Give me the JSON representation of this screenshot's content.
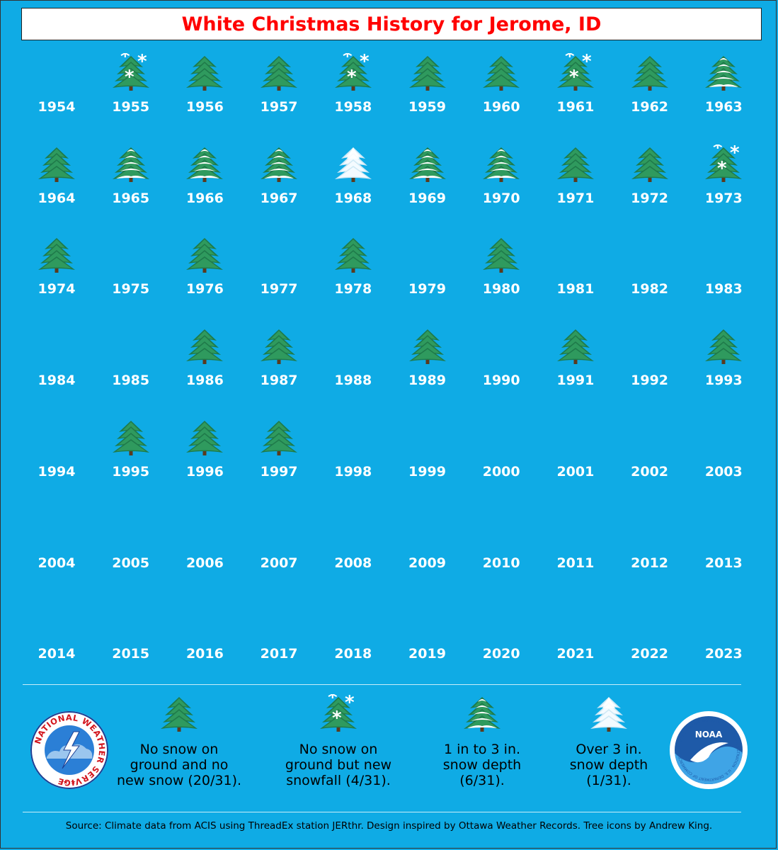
{
  "chart_data": {
    "type": "table",
    "title": "White Christmas History for Jerome, ID",
    "years": [
      1954,
      1955,
      1956,
      1957,
      1958,
      1959,
      1960,
      1961,
      1962,
      1963,
      1964,
      1965,
      1966,
      1967,
      1968,
      1969,
      1970,
      1971,
      1972,
      1973,
      1974,
      1975,
      1976,
      1977,
      1978,
      1979,
      1980,
      1981,
      1982,
      1983,
      1984,
      1985,
      1986,
      1987,
      1988,
      1989,
      1990,
      1991,
      1992,
      1993,
      1994,
      1995,
      1996,
      1997,
      1998,
      1999,
      2000,
      2001,
      2002,
      2003,
      2004,
      2005,
      2006,
      2007,
      2008,
      2009,
      2010,
      2011,
      2012,
      2013,
      2014,
      2015,
      2016,
      2017,
      2018,
      2019,
      2020,
      2021,
      2022,
      2023
    ],
    "categories_legend": [
      "none",
      "new",
      "light",
      "heavy"
    ],
    "status": [
      "missing",
      "new",
      "none",
      "none",
      "new",
      "none",
      "none",
      "new",
      "none",
      "light",
      "none",
      "light",
      "light",
      "light",
      "heavy",
      "light",
      "light",
      "none",
      "none",
      "new",
      "none",
      "missing",
      "none",
      "missing",
      "none",
      "missing",
      "none",
      "missing",
      "missing",
      "missing",
      "missing",
      "missing",
      "none",
      "none",
      "missing",
      "none",
      "missing",
      "none",
      "missing",
      "none",
      "missing",
      "none",
      "none",
      "none",
      "missing",
      "missing",
      "missing",
      "missing",
      "missing",
      "missing",
      "missing",
      "missing",
      "missing",
      "missing",
      "missing",
      "missing",
      "missing",
      "missing",
      "missing",
      "missing",
      "missing",
      "missing",
      "missing",
      "missing",
      "missing",
      "missing",
      "missing",
      "missing",
      "missing",
      "missing"
    ]
  },
  "legend": [
    {
      "kind": "none",
      "lines": [
        "No snow on",
        "ground and no",
        "new snow (20/31)."
      ]
    },
    {
      "kind": "new",
      "lines": [
        "No snow on",
        "ground but new",
        "snowfall (4/31)."
      ]
    },
    {
      "kind": "light",
      "lines": [
        "1 in to 3 in.",
        "snow depth",
        "(6/31)."
      ]
    },
    {
      "kind": "heavy",
      "lines": [
        "Over 3 in.",
        "snow depth",
        "(1/31)."
      ]
    }
  ],
  "source": "Source: Climate data from ACIS using ThreadEx station JERthr. Design inspired by Ottawa Weather Records. Tree icons by Andrew King.",
  "logos": {
    "nws_text": "NATIONAL WEATHER SERVICE",
    "noaa_text": "NOAA",
    "noaa_ring_text": "NATIONAL OCEANIC AND ATMOSPHERIC ADMINISTRATION · U.S. DEPARTMENT OF COMMERCE"
  },
  "colors": {
    "background": "#0fabe5",
    "title": "#ff0000",
    "tree_dark": "#1f7a4a",
    "tree_mid": "#2f9a5e",
    "snow": "#ffffff"
  }
}
